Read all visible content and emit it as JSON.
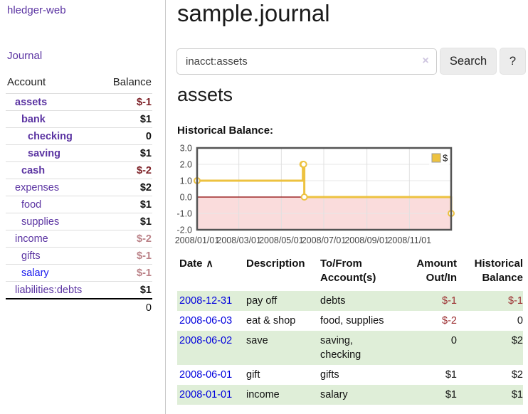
{
  "sidebar": {
    "brand": "hledger-web",
    "nav": {
      "journal": "Journal"
    },
    "table": {
      "account_header": "Account",
      "balance_header": "Balance"
    },
    "accounts": [
      {
        "name": "assets",
        "level": 1,
        "selected": true,
        "balance": "$-1",
        "neg": true
      },
      {
        "name": "bank",
        "level": 2,
        "selected": true,
        "balance": "$1"
      },
      {
        "name": "checking",
        "level": 3,
        "selected": true,
        "balance": "0"
      },
      {
        "name": "saving",
        "level": 3,
        "selected": true,
        "balance": "$1"
      },
      {
        "name": "cash",
        "level": 2,
        "selected": true,
        "balance": "$-2",
        "neg": true
      },
      {
        "name": "expenses",
        "level": 1,
        "balance": "$2"
      },
      {
        "name": "food",
        "level": 2,
        "balance": "$1"
      },
      {
        "name": "supplies",
        "level": 2,
        "balance": "$1"
      },
      {
        "name": "income",
        "level": 1,
        "balance": "$-2",
        "neg": true
      },
      {
        "name": "gifts",
        "level": 2,
        "balance": "$-1",
        "neg": true
      },
      {
        "name": "salary",
        "level": 2,
        "balance": "$-1",
        "neg": true,
        "unvisited": true
      },
      {
        "name": "liabilities:debts",
        "level": 1,
        "balance": "$1"
      }
    ],
    "total": "0"
  },
  "header": {
    "title": "sample.journal"
  },
  "search": {
    "value": "inacct:assets",
    "clear_icon": "×",
    "search_label": "Search",
    "help_label": "?"
  },
  "account_page": {
    "heading": "assets",
    "chart_label": "Historical Balance:"
  },
  "register": {
    "columns": [
      {
        "line1": "Date",
        "line2": "",
        "sort_icon": "∧"
      },
      {
        "line1": "Description",
        "line2": ""
      },
      {
        "line1": "To/From",
        "line2": "Account(s)"
      },
      {
        "line1": "Amount",
        "line2": "Out/In",
        "align": "right"
      },
      {
        "line1": "Historical",
        "line2": "Balance",
        "align": "right"
      }
    ],
    "rows": [
      {
        "date": "2008-12-31",
        "description": "pay off",
        "to_from": "debts",
        "amount": "$-1",
        "amount_neg": true,
        "balance": "$-1",
        "balance_neg": true
      },
      {
        "date": "2008-06-03",
        "description": "eat & shop",
        "to_from": "food, supplies",
        "amount": "$-2",
        "amount_neg": true,
        "balance": "0"
      },
      {
        "date": "2008-06-02",
        "description": "save",
        "to_from": "saving,\nchecking",
        "amount": "0",
        "balance": "$2"
      },
      {
        "date": "2008-06-01",
        "description": "gift",
        "to_from": "gifts",
        "amount": "$1",
        "balance": "$2"
      },
      {
        "date": "2008-01-01",
        "description": "income",
        "to_from": "salary",
        "amount": "$1",
        "balance": "$1"
      }
    ]
  },
  "chart_data": {
    "type": "line",
    "step": true,
    "title": "Historical Balance:",
    "series": [
      {
        "name": "$",
        "color": "#EDC240",
        "points": [
          [
            "2008-01-01",
            1
          ],
          [
            "2008-06-01",
            2
          ],
          [
            "2008-06-02",
            2
          ],
          [
            "2008-06-03",
            0
          ],
          [
            "2008-12-31",
            -1
          ]
        ]
      }
    ],
    "x_ticks": [
      "2008/01/01",
      "2008/03/01",
      "2008/05/01",
      "2008/07/01",
      "2008/09/01",
      "2008/11/01"
    ],
    "y_ticks": [
      3.0,
      2.0,
      1.0,
      0.0,
      -1.0,
      -2.0
    ],
    "ylim": [
      -2,
      3
    ],
    "grid": true,
    "legend": {
      "label": "$",
      "position": "top-right"
    },
    "negative_region_color": "#fadcdc",
    "zero_line_color": "#8b0000"
  },
  "colors": {
    "purple": "#5b34a2",
    "link_blue": "#0000dd",
    "neg_strong": "#7d2127",
    "neg_soft": "#bb8288",
    "table_neg": "#9c3032",
    "row_green": "#dfeed8",
    "chart_line": "#EDC240",
    "chart_negative_fill": "#fadcdc",
    "zero_line": "#8b0000",
    "button_bg": "#ececec"
  }
}
